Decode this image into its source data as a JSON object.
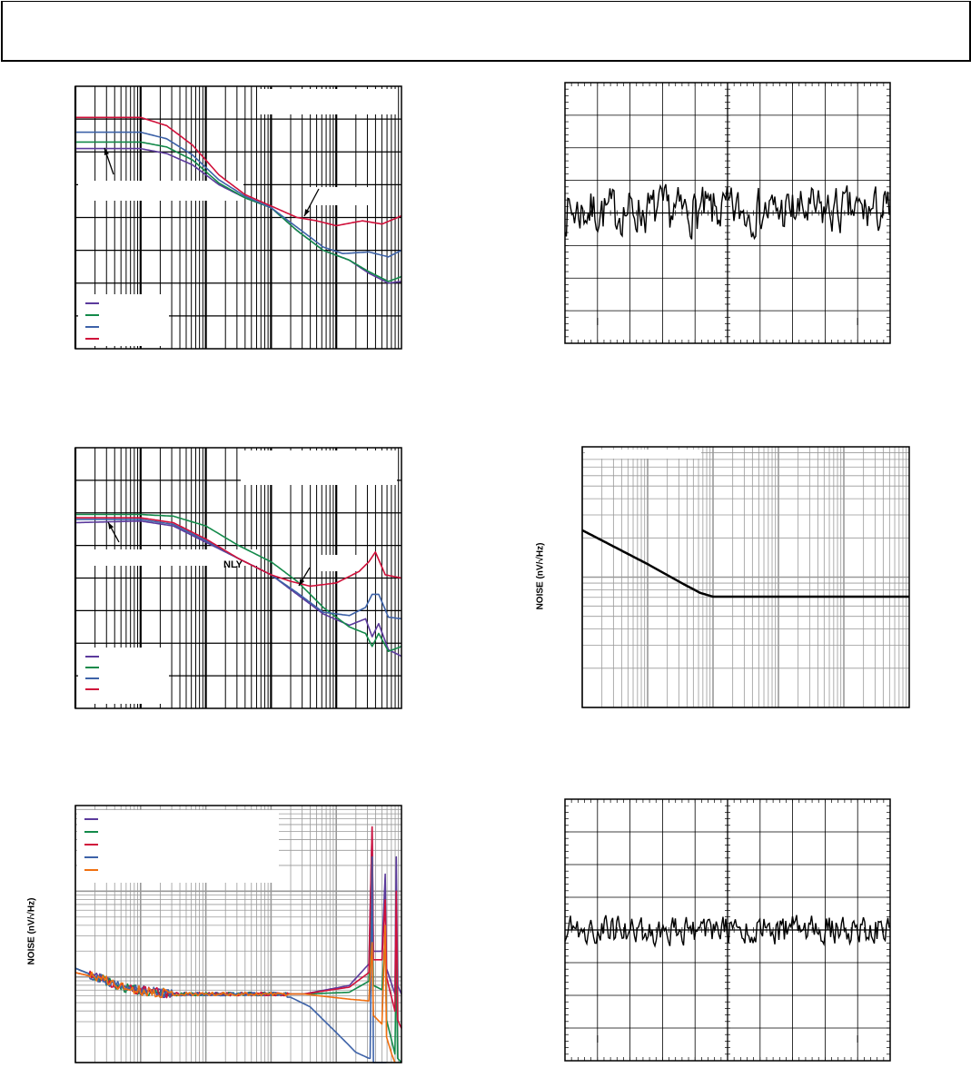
{
  "page": {
    "header_text": ""
  },
  "chart_data": [
    {
      "id": "c1",
      "type": "line",
      "xscale": "log-decades",
      "yscale": "linear-divisions",
      "xlim": [
        0,
        5
      ],
      "ylim": [
        0,
        8
      ],
      "grid": true,
      "legend": "bottom-left",
      "annotation": "",
      "series": [
        {
          "name": "",
          "color": "#5b3a9c",
          "points": [
            [
              0,
              6.1
            ],
            [
              1,
              6.1
            ],
            [
              1.4,
              5.95
            ],
            [
              1.8,
              5.6
            ],
            [
              2.2,
              5.0
            ],
            [
              2.6,
              4.6
            ],
            [
              3.0,
              4.3
            ],
            [
              3.4,
              3.6
            ],
            [
              3.8,
              3.0
            ],
            [
              4.2,
              2.7
            ],
            [
              4.5,
              2.3
            ],
            [
              4.8,
              2.0
            ],
            [
              5,
              2.05
            ]
          ]
        },
        {
          "name": "",
          "color": "#138a4a",
          "points": [
            [
              0,
              6.3
            ],
            [
              1,
              6.3
            ],
            [
              1.4,
              6.15
            ],
            [
              1.8,
              5.75
            ],
            [
              2.2,
              5.05
            ],
            [
              2.6,
              4.6
            ],
            [
              3.0,
              4.3
            ],
            [
              3.4,
              3.6
            ],
            [
              3.8,
              3.0
            ],
            [
              4.2,
              2.7
            ],
            [
              4.5,
              2.35
            ],
            [
              4.8,
              2.05
            ],
            [
              5,
              2.2
            ]
          ]
        },
        {
          "name": "",
          "color": "#3d62a8",
          "points": [
            [
              0,
              6.6
            ],
            [
              1,
              6.6
            ],
            [
              1.4,
              6.4
            ],
            [
              1.8,
              5.9
            ],
            [
              2.2,
              5.15
            ],
            [
              2.6,
              4.65
            ],
            [
              3.0,
              4.3
            ],
            [
              3.4,
              3.7
            ],
            [
              3.8,
              3.1
            ],
            [
              4.1,
              2.9
            ],
            [
              4.5,
              2.95
            ],
            [
              4.8,
              2.8
            ],
            [
              5,
              3.0
            ]
          ]
        },
        {
          "name": "",
          "color": "#d0103a",
          "points": [
            [
              0,
              7.05
            ],
            [
              1,
              7.05
            ],
            [
              1.4,
              6.8
            ],
            [
              1.8,
              6.2
            ],
            [
              2.2,
              5.3
            ],
            [
              2.6,
              4.7
            ],
            [
              3.0,
              4.35
            ],
            [
              3.4,
              4.0
            ],
            [
              3.7,
              3.9
            ],
            [
              4.0,
              3.75
            ],
            [
              4.4,
              3.9
            ],
            [
              4.7,
              3.8
            ],
            [
              5,
              4.05
            ]
          ]
        }
      ]
    },
    {
      "id": "c2",
      "type": "line",
      "kind": "oscilloscope-trace",
      "divisions": [
        10,
        8
      ],
      "baseline_div": 4.05,
      "amplitude_div": 1.0,
      "color": "#000000",
      "series": [
        {
          "name": "",
          "seed": 7
        }
      ]
    },
    {
      "id": "c3",
      "type": "line",
      "xscale": "log-decades",
      "yscale": "linear-divisions",
      "xlim": [
        0,
        5
      ],
      "ylim": [
        0,
        8
      ],
      "grid": true,
      "legend": "bottom-left",
      "annotation": "NLY",
      "series": [
        {
          "name": "",
          "color": "#5b3a9c",
          "points": [
            [
              0,
              5.7
            ],
            [
              1,
              5.75
            ],
            [
              1.5,
              5.6
            ],
            [
              2.0,
              5.1
            ],
            [
              2.5,
              4.6
            ],
            [
              3.0,
              4.1
            ],
            [
              3.4,
              3.5
            ],
            [
              3.8,
              2.9
            ],
            [
              4.2,
              2.55
            ],
            [
              4.45,
              2.75
            ],
            [
              4.55,
              2.2
            ],
            [
              4.65,
              2.6
            ],
            [
              4.8,
              1.8
            ],
            [
              5,
              1.6
            ]
          ]
        },
        {
          "name": "",
          "color": "#138a4a",
          "points": [
            [
              0,
              5.95
            ],
            [
              1,
              5.95
            ],
            [
              1.5,
              5.9
            ],
            [
              2.0,
              5.6
            ],
            [
              2.5,
              5.0
            ],
            [
              3.0,
              4.5
            ],
            [
              3.4,
              3.9
            ],
            [
              3.8,
              3.1
            ],
            [
              4.2,
              2.5
            ],
            [
              4.45,
              2.3
            ],
            [
              4.55,
              1.9
            ],
            [
              4.65,
              2.3
            ],
            [
              4.8,
              1.75
            ],
            [
              5,
              1.9
            ]
          ]
        },
        {
          "name": "",
          "color": "#3d62a8",
          "points": [
            [
              0,
              5.8
            ],
            [
              1,
              5.8
            ],
            [
              1.5,
              5.65
            ],
            [
              2.0,
              5.15
            ],
            [
              2.5,
              4.6
            ],
            [
              3.0,
              4.1
            ],
            [
              3.4,
              3.55
            ],
            [
              3.8,
              2.95
            ],
            [
              4.2,
              2.85
            ],
            [
              4.45,
              3.1
            ],
            [
              4.55,
              3.5
            ],
            [
              4.65,
              3.5
            ],
            [
              4.8,
              2.8
            ],
            [
              5,
              2.75
            ]
          ]
        },
        {
          "name": "",
          "color": "#d0103a",
          "points": [
            [
              0,
              5.85
            ],
            [
              1,
              5.85
            ],
            [
              1.5,
              5.7
            ],
            [
              2.0,
              5.2
            ],
            [
              2.5,
              4.6
            ],
            [
              3.0,
              4.1
            ],
            [
              3.3,
              3.9
            ],
            [
              3.6,
              3.75
            ],
            [
              4.0,
              3.85
            ],
            [
              4.35,
              4.2
            ],
            [
              4.5,
              4.5
            ],
            [
              4.6,
              4.8
            ],
            [
              4.75,
              4.1
            ],
            [
              5,
              4.0
            ]
          ]
        }
      ]
    },
    {
      "id": "c4",
      "type": "line",
      "xscale": "log-decades",
      "yscale": "log-decades",
      "xlim": [
        0,
        5
      ],
      "ylim": [
        0,
        2
      ],
      "ylabel": "NOISE (nV/√Hz)",
      "grid": true,
      "series": [
        {
          "name": "",
          "color": "#000000",
          "points": [
            [
              0,
              1.36
            ],
            [
              0.5,
              1.23
            ],
            [
              1.0,
              1.1
            ],
            [
              1.5,
              0.96
            ],
            [
              1.8,
              0.88
            ],
            [
              2.0,
              0.85
            ],
            [
              5,
              0.85
            ]
          ]
        }
      ]
    },
    {
      "id": "c5",
      "type": "line",
      "xscale": "log-decades",
      "yscale": "log-decades",
      "xlim": [
        0,
        5
      ],
      "ylim": [
        0,
        3
      ],
      "ylabel": "NOISE (nV/√Hz)",
      "grid": true,
      "legend": "top-left",
      "series": [
        {
          "name": "",
          "color": "#5b3a9c",
          "points": [
            [
              0,
              1.1
            ],
            [
              0.4,
              0.98
            ],
            [
              0.8,
              0.86
            ],
            [
              1.5,
              0.8
            ],
            [
              3.5,
              0.8
            ],
            [
              4.2,
              0.9
            ],
            [
              4.5,
              1.15
            ],
            [
              4.55,
              2.75
            ],
            [
              4.57,
              1.3
            ],
            [
              4.7,
              1.3
            ],
            [
              4.75,
              2.2
            ],
            [
              4.77,
              1.1
            ],
            [
              4.9,
              0.8
            ],
            [
              4.92,
              2.4
            ],
            [
              4.94,
              0.9
            ],
            [
              5,
              0.8
            ]
          ]
        },
        {
          "name": "",
          "color": "#138a4a",
          "points": [
            [
              0,
              1.1
            ],
            [
              0.4,
              0.98
            ],
            [
              0.8,
              0.86
            ],
            [
              1.5,
              0.8
            ],
            [
              3.5,
              0.8
            ],
            [
              4.2,
              0.82
            ],
            [
              4.5,
              0.95
            ],
            [
              4.55,
              2.0
            ],
            [
              4.57,
              0.9
            ],
            [
              4.7,
              0.85
            ],
            [
              4.75,
              1.5
            ],
            [
              4.77,
              0.5
            ],
            [
              4.9,
              0.1
            ],
            [
              4.92,
              1.2
            ],
            [
              4.94,
              0.05
            ],
            [
              5,
              0
            ]
          ]
        },
        {
          "name": "",
          "color": "#d0103a",
          "points": [
            [
              0,
              1.05
            ],
            [
              0.4,
              0.98
            ],
            [
              0.8,
              0.86
            ],
            [
              1.5,
              0.8
            ],
            [
              3.5,
              0.8
            ],
            [
              4.2,
              0.88
            ],
            [
              4.5,
              1.05
            ],
            [
              4.55,
              2.75
            ],
            [
              4.57,
              1.2
            ],
            [
              4.7,
              1.2
            ],
            [
              4.75,
              1.9
            ],
            [
              4.77,
              1.0
            ],
            [
              4.9,
              0.6
            ],
            [
              4.92,
              2.0
            ],
            [
              4.94,
              0.5
            ],
            [
              5,
              0.4
            ]
          ]
        },
        {
          "name": "",
          "color": "#3d62a8",
          "points": [
            [
              0,
              1.1
            ],
            [
              0.4,
              0.98
            ],
            [
              0.8,
              0.86
            ],
            [
              1.5,
              0.8
            ],
            [
              3.2,
              0.8
            ],
            [
              3.6,
              0.65
            ],
            [
              4.0,
              0.35
            ],
            [
              4.3,
              0.12
            ],
            [
              4.5,
              0.05
            ],
            [
              4.52,
              0.05
            ],
            [
              4.55,
              2.4
            ],
            [
              4.57,
              0
            ],
            [
              4.75,
              0
            ],
            [
              4.77,
              0
            ]
          ]
        },
        {
          "name": "",
          "color": "#f07010",
          "points": [
            [
              0,
              1.05
            ],
            [
              0.4,
              0.98
            ],
            [
              0.8,
              0.86
            ],
            [
              1.5,
              0.8
            ],
            [
              3.5,
              0.8
            ],
            [
              4.2,
              0.74
            ],
            [
              4.5,
              0.72
            ],
            [
              4.55,
              1.4
            ],
            [
              4.57,
              0.55
            ],
            [
              4.7,
              0.45
            ],
            [
              4.75,
              1.6
            ],
            [
              4.77,
              0.3
            ],
            [
              4.85,
              0.1
            ],
            [
              4.9,
              0
            ]
          ]
        }
      ]
    },
    {
      "id": "c6",
      "type": "line",
      "kind": "oscilloscope-trace",
      "divisions": [
        10,
        8
      ],
      "baseline_div": 4.0,
      "amplitude_div": 0.6,
      "color": "#000000",
      "series": [
        {
          "name": "",
          "seed": 19
        }
      ]
    }
  ]
}
